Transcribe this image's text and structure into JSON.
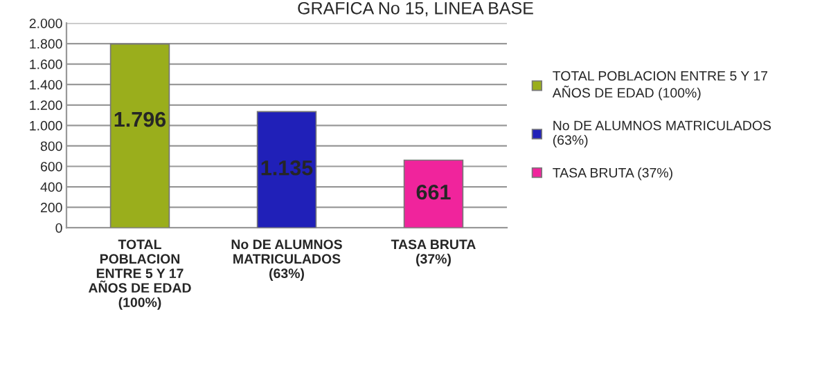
{
  "chart_data": {
    "type": "bar",
    "title": "GRAFICA No 15, LINEA BASE",
    "categories": [
      "TOTAL POBLACION ENTRE 5 Y 17 AÑOS DE EDAD (100%)",
      "No DE ALUMNOS MATRICULADOS (63%)",
      "TASA BRUTA (37%)"
    ],
    "series": [
      {
        "name": "TOTAL POBLACION ENTRE 5 Y 17 AÑOS DE EDAD (100%)",
        "color": "#9aae1c",
        "values": [
          1796,
          null,
          null
        ],
        "value_labels": [
          "1.796",
          null,
          null
        ]
      },
      {
        "name": "No DE ALUMNOS MATRICULADOS (63%)",
        "color": "#2020b8",
        "values": [
          null,
          1135,
          null
        ],
        "value_labels": [
          null,
          "1.135",
          null
        ]
      },
      {
        "name": "TASA BRUTA (37%)",
        "color": "#f0249c",
        "values": [
          null,
          null,
          661
        ],
        "value_labels": [
          null,
          null,
          "661"
        ]
      }
    ],
    "ylim": [
      0,
      2000
    ],
    "yticks": [
      {
        "value": 0,
        "label": "0"
      },
      {
        "value": 200,
        "label": "200"
      },
      {
        "value": 400,
        "label": "400"
      },
      {
        "value": 600,
        "label": "600"
      },
      {
        "value": 800,
        "label": "800"
      },
      {
        "value": 1000,
        "label": "1.000"
      },
      {
        "value": 1200,
        "label": "1.200"
      },
      {
        "value": 1400,
        "label": "1.400"
      },
      {
        "value": 1600,
        "label": "1.600"
      },
      {
        "value": 1800,
        "label": "1.800"
      },
      {
        "value": 2000,
        "label": "2.000"
      }
    ],
    "grid": "y",
    "legend": "right"
  }
}
